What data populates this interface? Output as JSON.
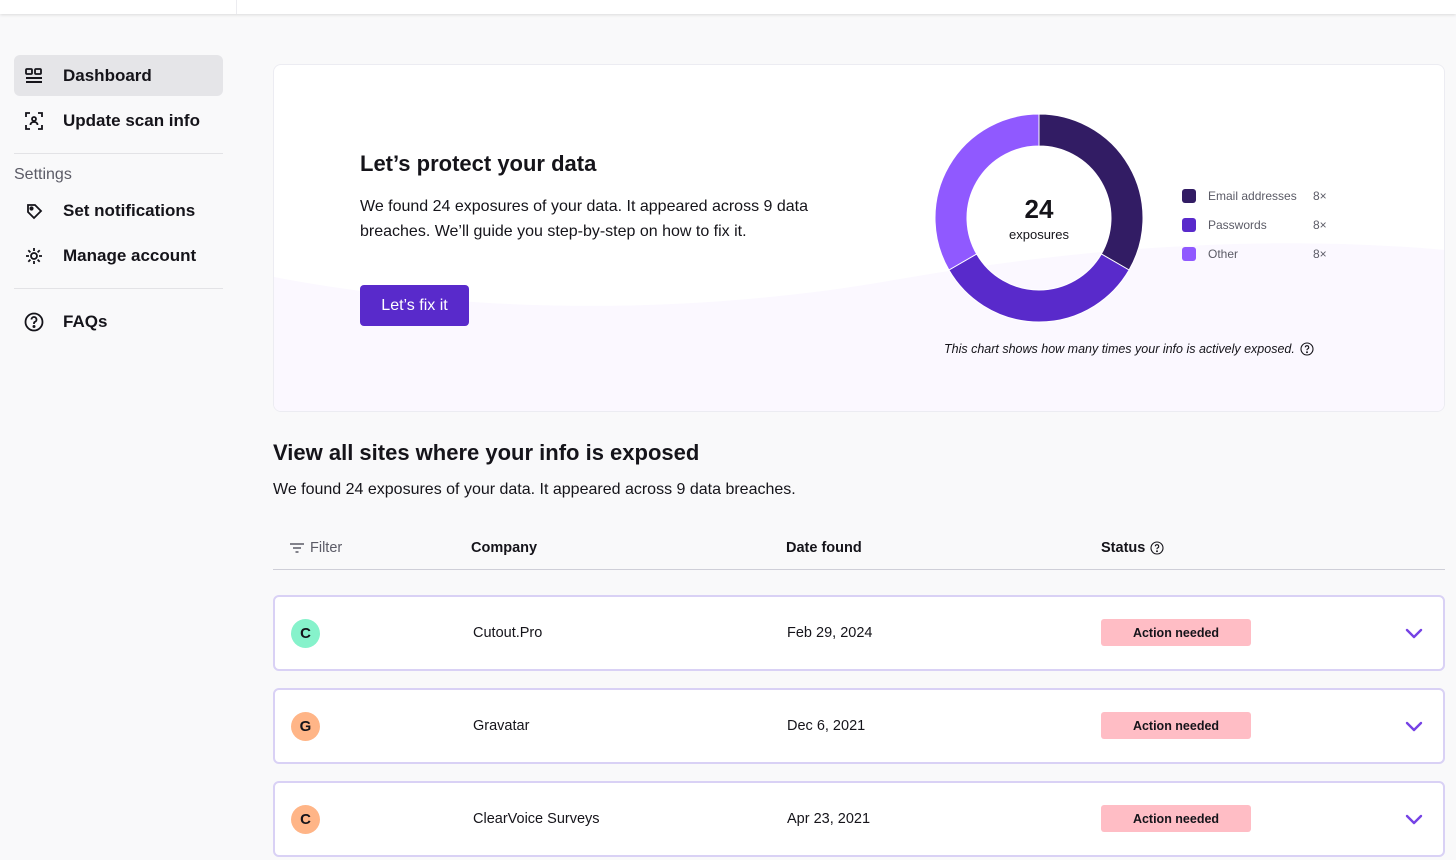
{
  "sidebar": {
    "items": [
      {
        "label": "Dashboard",
        "icon": "dashboard-icon",
        "active": true
      },
      {
        "label": "Update scan info",
        "icon": "scan-icon"
      }
    ],
    "settings_title": "Settings",
    "settings_items": [
      {
        "label": "Set notifications",
        "icon": "notification-icon"
      },
      {
        "label": "Manage account",
        "icon": "gear-icon"
      }
    ],
    "faq": {
      "label": "FAQs",
      "icon": "question-icon"
    }
  },
  "hero": {
    "title": "Let’s protect your data",
    "text": "We found 24 exposures of your data. It appeared across 9 data breaches. We’ll guide you step-by-step on how to fix it.",
    "button_label": "Let’s fix it",
    "chart_note": "This chart shows how many times your info is actively exposed."
  },
  "chart_data": {
    "type": "pie",
    "center_value": "24",
    "center_label": "exposures",
    "series": [
      {
        "name": "Email addresses",
        "value": 8,
        "count_label": "8×",
        "color": "#321c64"
      },
      {
        "name": "Passwords",
        "value": 8,
        "count_label": "8×",
        "color": "#592acb"
      },
      {
        "name": "Other",
        "value": 8,
        "count_label": "8×",
        "color": "#9059ff"
      }
    ],
    "legend_position": "right"
  },
  "section": {
    "title": "View all sites where your info is exposed",
    "description": "We found 24 exposures of your data. It appeared across 9 data breaches."
  },
  "table": {
    "filter_label": "Filter",
    "columns": {
      "company": "Company",
      "date": "Date found",
      "status": "Status"
    },
    "rows": [
      {
        "initial": "C",
        "avatar_color": "#86f2cb",
        "company": "Cutout.Pro",
        "date": "Feb 29, 2024",
        "status": "Action needed"
      },
      {
        "initial": "G",
        "avatar_color": "#ffb587",
        "company": "Gravatar",
        "date": "Dec 6, 2021",
        "status": "Action needed"
      },
      {
        "initial": "C",
        "avatar_color": "#ffb587",
        "company": "ClearVoice Surveys",
        "date": "Apr 23, 2021",
        "status": "Action needed"
      }
    ]
  }
}
